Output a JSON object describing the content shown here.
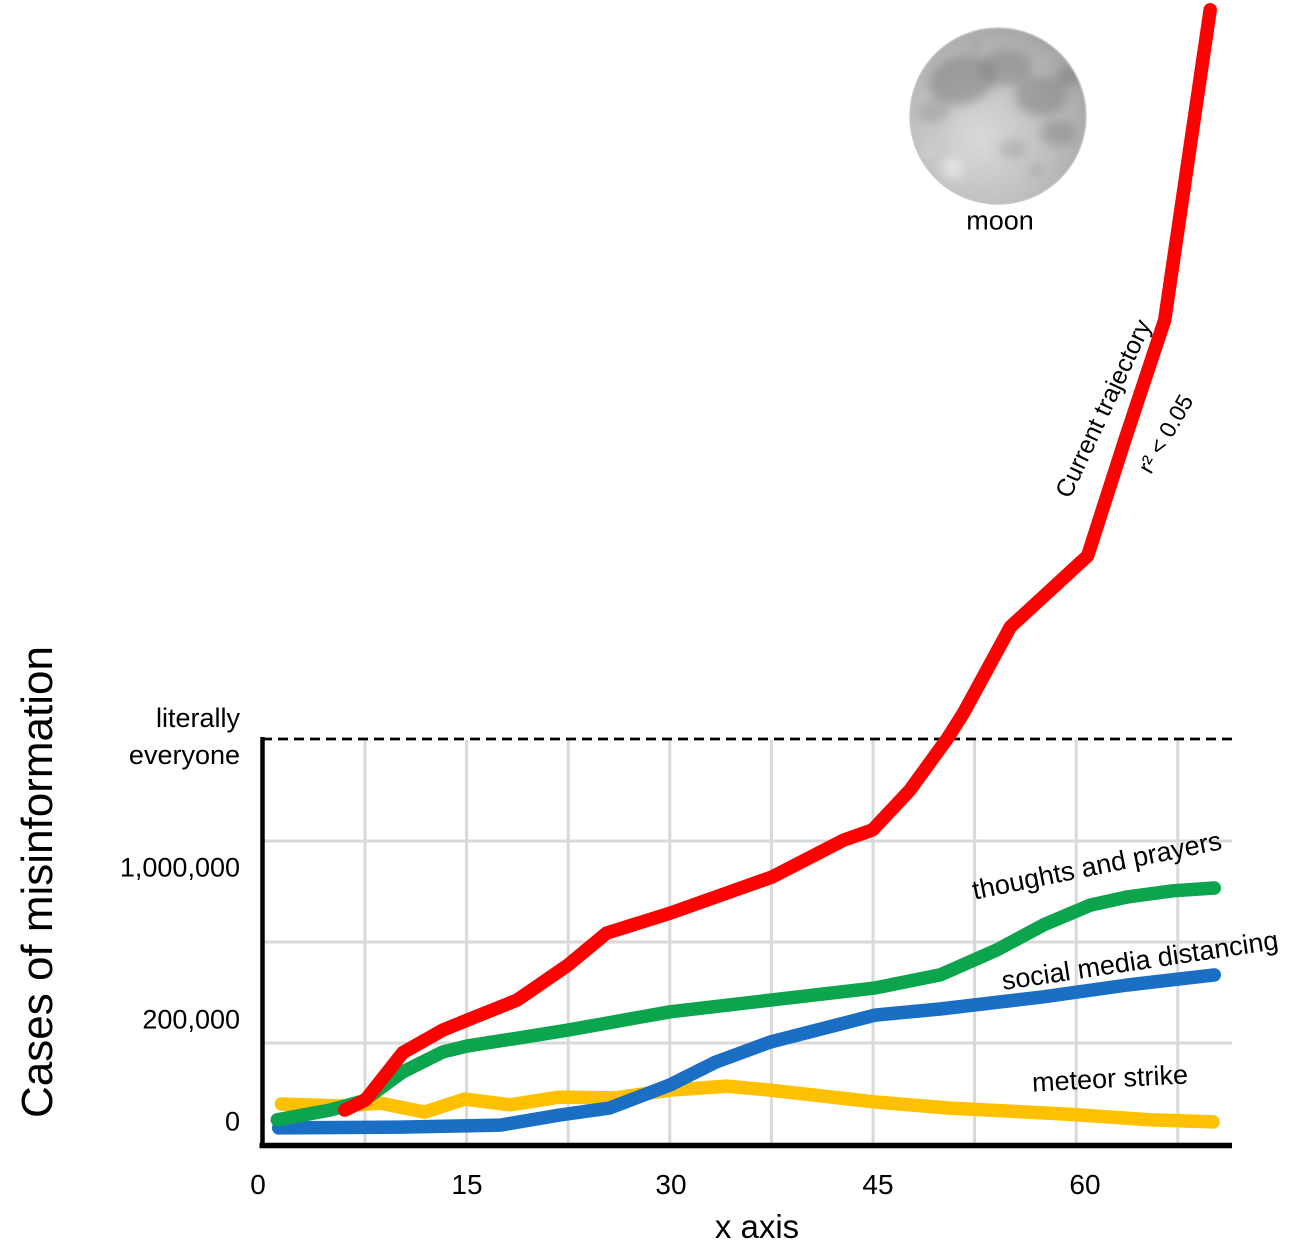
{
  "page": {
    "background": "#ffffff"
  },
  "colors": {
    "red": "#FF0000",
    "green": "#0CA44D",
    "blue": "#1A6FC4",
    "yellow": "#FFC000",
    "grid": "#D9D9D9",
    "axis": "#000000",
    "text": "#000000"
  },
  "y_axis": {
    "title": "Cases of misinformation",
    "ticks": [
      "literally\neveryone",
      "1,000,000",
      "200,000",
      "0"
    ]
  },
  "x_axis": {
    "title": "x axis",
    "ticks": [
      "0",
      "15",
      "30",
      "45",
      "60"
    ]
  },
  "moon": {
    "caption": "moon"
  },
  "chart_data": {
    "type": "line",
    "title": "",
    "xlabel": "x axis",
    "ylabel": "Cases of misinformation",
    "x_ticks": [
      0,
      15,
      30,
      45,
      60
    ],
    "x_range": [
      0,
      70.7
    ],
    "y_tick_labels": [
      "0",
      "200,000",
      "1,000,000",
      "literally everyone"
    ],
    "y_scale_note": "Novelty non-linear axis. Point y-values are fractions of the dashed 'literally everyone' line: 0 = x-axis, 1 = dashed line, >1 = above it (red line exits the top of the image).",
    "y_tick_fractions": {
      "0": 0.057,
      "200,000": 0.308,
      "1,000,000": 0.682,
      "literally everyone": 1.0
    },
    "grid": true,
    "legend": "inline labels beside each line",
    "threshold_line": {
      "label": "literally everyone",
      "style": "dashed",
      "fraction": 1.0
    },
    "series": [
      {
        "id": "current-trajectory",
        "name": "Current trajectory",
        "annotation": "r² < 0.05",
        "color": "#FF0000",
        "note": "rises from ~0, passes 1,000,000 near x=37, crosses 'literally everyone' near x=50, shoots off the top of the chart by x=69",
        "points": [
          [
            6.3,
            0.086
          ],
          [
            7.8,
            0.111
          ],
          [
            10.5,
            0.227
          ],
          [
            13.4,
            0.283
          ],
          [
            15.2,
            0.308
          ],
          [
            18.8,
            0.357
          ],
          [
            22.5,
            0.443
          ],
          [
            25.3,
            0.522
          ],
          [
            29.9,
            0.571
          ],
          [
            37.3,
            0.66
          ],
          [
            42.5,
            0.751
          ],
          [
            44.6,
            0.776
          ],
          [
            47.3,
            0.874
          ],
          [
            50.0,
            1.0
          ],
          [
            51.2,
            1.064
          ],
          [
            54.6,
            1.276
          ],
          [
            60.2,
            1.451
          ],
          [
            62.9,
            1.736
          ],
          [
            65.8,
            2.032
          ],
          [
            69.1,
            2.796
          ]
        ]
      },
      {
        "id": "thoughts-and-prayers",
        "name": "thoughts and prayers",
        "color": "#0CA44D",
        "note": "steady growth, ends just below 1,000,000",
        "points": [
          [
            1.4,
            0.062
          ],
          [
            5.2,
            0.086
          ],
          [
            7.6,
            0.108
          ],
          [
            10.5,
            0.18
          ],
          [
            13.4,
            0.229
          ],
          [
            15.2,
            0.244
          ],
          [
            19.0,
            0.264
          ],
          [
            22.5,
            0.283
          ],
          [
            29.9,
            0.328
          ],
          [
            37.2,
            0.357
          ],
          [
            44.8,
            0.387
          ],
          [
            49.5,
            0.419
          ],
          [
            53.6,
            0.48
          ],
          [
            57.0,
            0.542
          ],
          [
            60.4,
            0.591
          ],
          [
            63.1,
            0.611
          ],
          [
            66.4,
            0.626
          ],
          [
            69.4,
            0.633
          ]
        ]
      },
      {
        "id": "social-media-distancing",
        "name": "social media distancing",
        "color": "#1A6FC4",
        "note": "flat near 0 until x≈18, then slow rise to ~400,000",
        "points": [
          [
            1.5,
            0.042
          ],
          [
            10.3,
            0.044
          ],
          [
            17.6,
            0.049
          ],
          [
            21.9,
            0.074
          ],
          [
            25.5,
            0.091
          ],
          [
            29.9,
            0.148
          ],
          [
            33.2,
            0.204
          ],
          [
            37.2,
            0.254
          ],
          [
            44.8,
            0.32
          ],
          [
            49.5,
            0.335
          ],
          [
            57.0,
            0.365
          ],
          [
            63.1,
            0.394
          ],
          [
            69.4,
            0.419
          ]
        ]
      },
      {
        "id": "meteor-strike",
        "name": "meteor strike",
        "color": "#FFC000",
        "note": "wobbles just above 0 and slowly declines",
        "points": [
          [
            1.7,
            0.101
          ],
          [
            6.0,
            0.096
          ],
          [
            8.9,
            0.103
          ],
          [
            12.1,
            0.081
          ],
          [
            15.0,
            0.113
          ],
          [
            18.3,
            0.099
          ],
          [
            21.9,
            0.118
          ],
          [
            25.9,
            0.116
          ],
          [
            29.9,
            0.135
          ],
          [
            34.0,
            0.145
          ],
          [
            37.2,
            0.135
          ],
          [
            44.8,
            0.106
          ],
          [
            50.2,
            0.091
          ],
          [
            58.7,
            0.076
          ],
          [
            64.7,
            0.062
          ],
          [
            69.3,
            0.057
          ]
        ]
      }
    ],
    "annotations": [
      {
        "text": "moon",
        "type": "caption under moon photo",
        "rotation_deg": 0
      },
      {
        "text": "Current trajectory",
        "rotation_deg": -65
      },
      {
        "text": "r² < 0.05",
        "rotation_deg": -60
      },
      {
        "text": "thoughts and prayers",
        "rotation_deg": -11.5
      },
      {
        "text": "social media distancing",
        "rotation_deg": -8.5
      },
      {
        "text": "meteor strike",
        "rotation_deg": -3
      }
    ]
  }
}
